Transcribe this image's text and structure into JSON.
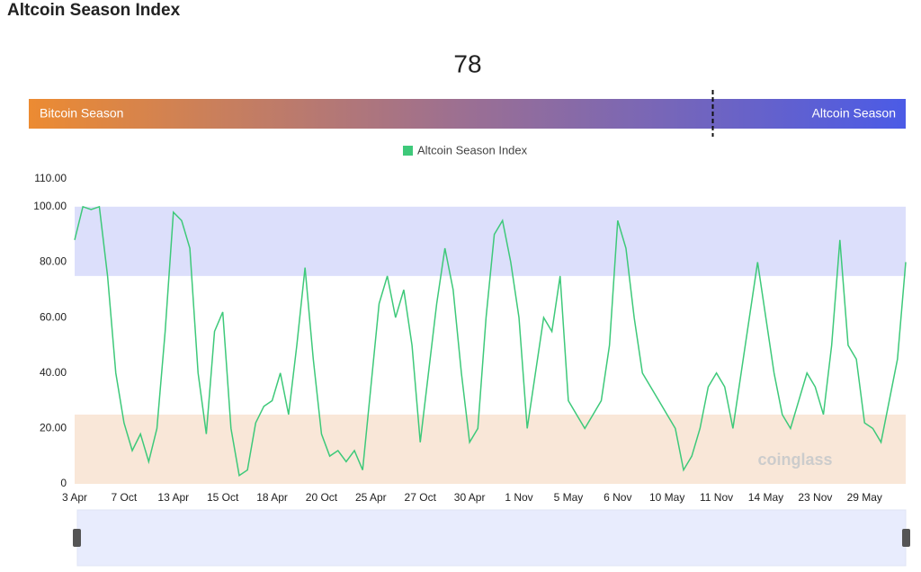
{
  "header": {
    "title": "Altcoin Season Index"
  },
  "gauge": {
    "value": 78,
    "min": 0,
    "max": 100,
    "left_label": "Bitcoin Season",
    "right_label": "Altcoin Season"
  },
  "watermark": "coinglass",
  "chart_data": {
    "type": "line",
    "legend": "top",
    "categories": [
      "3 Apr",
      null,
      null,
      null,
      null,
      null,
      "7 Oct",
      null,
      null,
      null,
      null,
      null,
      "13 Apr",
      null,
      null,
      null,
      null,
      null,
      "15 Oct",
      null,
      null,
      null,
      null,
      null,
      "18 Apr",
      null,
      null,
      null,
      null,
      null,
      "20 Oct",
      null,
      null,
      null,
      null,
      null,
      "25 Apr",
      null,
      null,
      null,
      null,
      null,
      "27 Oct",
      null,
      null,
      null,
      null,
      null,
      "30 Apr",
      null,
      null,
      null,
      null,
      null,
      "1 Nov",
      null,
      null,
      null,
      null,
      null,
      "5 May",
      null,
      null,
      null,
      null,
      null,
      "6 Nov",
      null,
      null,
      null,
      null,
      null,
      "10 May",
      null,
      null,
      null,
      null,
      null,
      "11 Nov",
      null,
      null,
      null,
      null,
      null,
      "14 May",
      null,
      null,
      null,
      null,
      null,
      "23 Nov",
      null,
      null,
      null,
      null,
      null,
      "29 May",
      null,
      null,
      null,
      null,
      null
    ],
    "series": [
      {
        "name": "Altcoin Season Index",
        "color": "#3ec97a",
        "values": [
          88,
          100,
          99,
          100,
          75,
          40,
          22,
          12,
          18,
          8,
          20,
          55,
          98,
          95,
          85,
          40,
          18,
          55,
          62,
          20,
          3,
          5,
          22,
          28,
          30,
          40,
          25,
          50,
          78,
          45,
          18,
          10,
          12,
          8,
          12,
          5,
          35,
          65,
          75,
          60,
          70,
          50,
          15,
          40,
          65,
          85,
          70,
          40,
          15,
          20,
          60,
          90,
          95,
          80,
          60,
          20,
          40,
          60,
          55,
          75,
          30,
          25,
          20,
          25,
          30,
          50,
          95,
          85,
          60,
          40,
          35,
          30,
          25,
          20,
          5,
          10,
          20,
          35,
          40,
          35,
          20,
          40,
          60,
          80,
          60,
          40,
          25,
          20,
          30,
          40,
          35,
          25,
          50,
          88,
          50,
          45,
          22,
          20,
          15,
          30,
          45,
          80
        ]
      }
    ],
    "bands": [
      {
        "from": 75,
        "to": 100,
        "color": "#dcdffb"
      },
      {
        "from": 0,
        "to": 25,
        "color": "#f9e7d8"
      }
    ],
    "ylim": [
      0,
      110
    ],
    "yticks": [
      0,
      {
        "value": 20,
        "label": "20.00"
      },
      {
        "value": 40,
        "label": "40.00"
      },
      {
        "value": 60,
        "label": "60.00"
      },
      {
        "value": 80,
        "label": "80.00"
      },
      {
        "value": 100,
        "label": "100.00"
      },
      {
        "value": 110,
        "label": "110.00"
      }
    ],
    "grid": false
  }
}
